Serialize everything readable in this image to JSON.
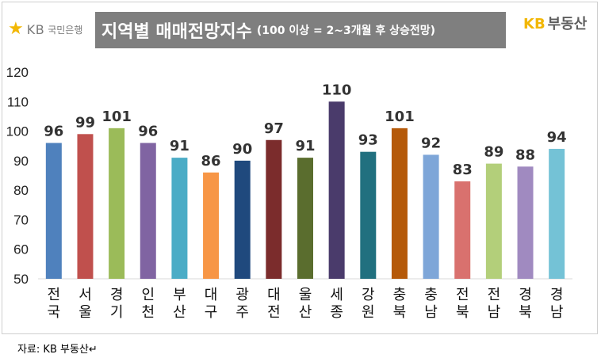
{
  "branding": {
    "left_logo_symbol": "★",
    "left_logo_kb": "KB",
    "left_logo_bank": "국민은행",
    "right_logo_kb": "KB",
    "right_logo_text": "부동산"
  },
  "header": {
    "title": "지역별 매매전망지수",
    "subtitle": "(100 이상 = 2~3개월 후 상승전망)"
  },
  "footer": {
    "source": "자료: KB 부동산↵"
  },
  "chart_data": {
    "type": "bar",
    "categories": [
      "전국",
      "서울",
      "경기",
      "인천",
      "부산",
      "대구",
      "광주",
      "대전",
      "울산",
      "세종",
      "강원",
      "충북",
      "충남",
      "전북",
      "전남",
      "경북",
      "경남"
    ],
    "values": [
      96,
      99,
      101,
      96,
      91,
      86,
      90,
      97,
      91,
      110,
      93,
      101,
      92,
      83,
      89,
      88,
      94
    ],
    "colors": [
      "#4f81bd",
      "#c0504d",
      "#9bbb59",
      "#8064a2",
      "#4bacc6",
      "#f79646",
      "#1f497d",
      "#7b2c2c",
      "#5a6d2e",
      "#4a3b6b",
      "#21707f",
      "#b55a0a",
      "#7ea6d8",
      "#d9716e",
      "#b3cf7a",
      "#a08ac0",
      "#74c2d6"
    ],
    "ylim": [
      50,
      120
    ],
    "yticks": [
      50,
      60,
      70,
      80,
      90,
      100,
      110,
      120
    ],
    "grid": false
  }
}
